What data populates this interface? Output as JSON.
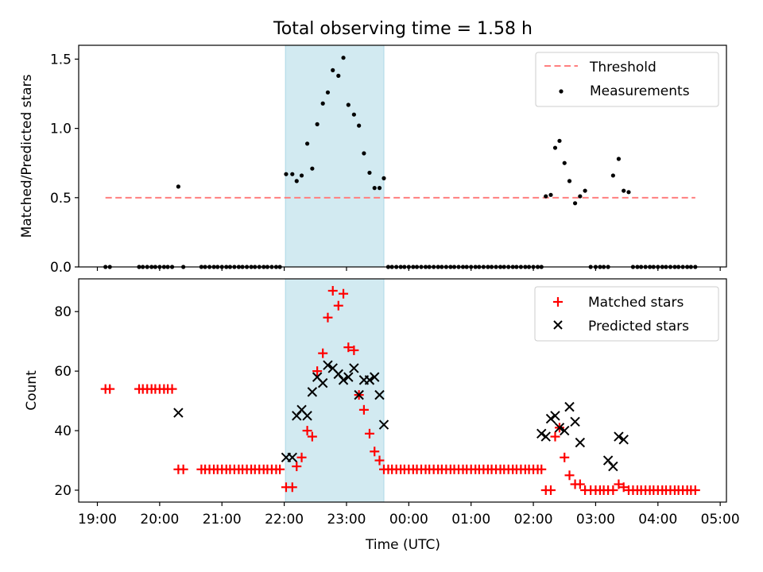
{
  "figure_title": "Total observing time = 1.58 h",
  "xlabel": "Time (UTC)",
  "x_tick_labels": [
    "19:00",
    "20:00",
    "21:00",
    "22:00",
    "23:00",
    "00:00",
    "01:00",
    "02:00",
    "03:00",
    "04:00",
    "05:00"
  ],
  "chart_data": [
    {
      "type": "scatter",
      "ylabel": "Matched/Predicted stars",
      "xlim_hours": [
        18.7,
        29.1
      ],
      "ylim": [
        0,
        1.6
      ],
      "y_tick_labels": [
        "0.0",
        "0.5",
        "1.0",
        "1.5"
      ],
      "shaded_region_hours": [
        22.02,
        23.6
      ],
      "shaded_color": "#add8e6",
      "threshold": {
        "name": "Threshold",
        "value": 0.5,
        "x_range_hours": [
          19.13,
          28.6
        ],
        "color": "#ff7f7f",
        "style": "dashed"
      },
      "legend": {
        "placement": "upper right",
        "entries": [
          "Threshold",
          "Measurements"
        ]
      },
      "series": [
        {
          "name": "Measurements",
          "marker": "dot",
          "color": "#000000",
          "x_hours": [
            19.13,
            19.2,
            19.67,
            19.73,
            19.8,
            19.87,
            19.93,
            20.0,
            20.07,
            20.13,
            20.2,
            20.3,
            20.38,
            20.67,
            20.73,
            20.8,
            20.87,
            20.93,
            21.0,
            21.07,
            21.13,
            21.2,
            21.27,
            21.33,
            21.4,
            21.47,
            21.53,
            21.6,
            21.67,
            21.73,
            21.8,
            21.87,
            21.93,
            22.03,
            22.13,
            22.2,
            22.28,
            22.37,
            22.45,
            22.53,
            22.62,
            22.7,
            22.78,
            22.87,
            22.95,
            23.03,
            23.12,
            23.2,
            23.28,
            23.37,
            23.45,
            23.53,
            23.6,
            23.67,
            23.73,
            23.8,
            23.87,
            23.93,
            24.0,
            24.07,
            24.13,
            24.2,
            24.27,
            24.33,
            24.4,
            24.47,
            24.53,
            24.6,
            24.67,
            24.73,
            24.8,
            24.87,
            24.93,
            25.0,
            25.07,
            25.13,
            25.2,
            25.27,
            25.33,
            25.4,
            25.47,
            25.53,
            25.6,
            25.67,
            25.73,
            25.8,
            25.87,
            25.93,
            26.0,
            26.07,
            26.13,
            26.2,
            26.28,
            26.35,
            26.42,
            26.5,
            26.58,
            26.67,
            26.75,
            26.83,
            26.92,
            27.0,
            27.07,
            27.13,
            27.2,
            27.28,
            27.37,
            27.45,
            27.53,
            27.6,
            27.67,
            27.73,
            27.8,
            27.87,
            27.93,
            28.0,
            28.07,
            28.13,
            28.2,
            28.27,
            28.33,
            28.4,
            28.47,
            28.53,
            28.6
          ],
          "y": [
            0,
            0,
            0,
            0,
            0,
            0,
            0,
            0,
            0,
            0,
            0,
            0.58,
            0,
            0,
            0,
            0,
            0,
            0,
            0,
            0,
            0,
            0,
            0,
            0,
            0,
            0,
            0,
            0,
            0,
            0,
            0,
            0,
            0,
            0.67,
            0.67,
            0.62,
            0.66,
            0.89,
            0.71,
            1.03,
            1.18,
            1.26,
            1.42,
            1.38,
            1.51,
            1.17,
            1.1,
            1.02,
            0.82,
            0.68,
            0.57,
            0.57,
            0.64,
            0,
            0,
            0,
            0,
            0,
            0,
            0,
            0,
            0,
            0,
            0,
            0,
            0,
            0,
            0,
            0,
            0,
            0,
            0,
            0,
            0,
            0,
            0,
            0,
            0,
            0,
            0,
            0,
            0,
            0,
            0,
            0,
            0,
            0,
            0,
            0,
            0,
            0,
            0.51,
            0.52,
            0.86,
            0.91,
            0.75,
            0.62,
            0.46,
            0.51,
            0.55,
            0,
            0,
            0,
            0,
            0,
            0.66,
            0.78,
            0.55,
            0.54,
            0,
            0,
            0,
            0,
            0,
            0,
            0,
            0,
            0,
            0,
            0,
            0,
            0,
            0,
            0,
            0
          ]
        }
      ]
    },
    {
      "type": "scatter",
      "ylabel": "Count",
      "xlim_hours": [
        18.7,
        29.1
      ],
      "ylim": [
        16,
        91
      ],
      "y_tick_labels": [
        "20",
        "40",
        "60",
        "80"
      ],
      "y_tick_values": [
        20,
        40,
        60,
        80
      ],
      "shaded_region_hours": [
        22.02,
        23.6
      ],
      "shaded_color": "#add8e6",
      "legend": {
        "placement": "upper right",
        "entries": [
          "Matched stars",
          "Predicted stars"
        ]
      },
      "series": [
        {
          "name": "Matched stars",
          "marker": "plus",
          "color": "#ff0000",
          "x_hours": [
            19.13,
            19.2,
            19.67,
            19.73,
            19.8,
            19.87,
            19.93,
            20.0,
            20.07,
            20.13,
            20.2,
            20.3,
            20.38,
            20.67,
            20.73,
            20.8,
            20.87,
            20.93,
            21.0,
            21.07,
            21.13,
            21.2,
            21.27,
            21.33,
            21.4,
            21.47,
            21.53,
            21.6,
            21.67,
            21.73,
            21.8,
            21.87,
            21.93,
            22.03,
            22.13,
            22.2,
            22.28,
            22.37,
            22.45,
            22.53,
            22.62,
            22.7,
            22.78,
            22.87,
            22.95,
            23.03,
            23.12,
            23.2,
            23.28,
            23.37,
            23.45,
            23.53,
            23.6,
            23.67,
            23.73,
            23.8,
            23.87,
            23.93,
            24.0,
            24.07,
            24.13,
            24.2,
            24.27,
            24.33,
            24.4,
            24.47,
            24.53,
            24.6,
            24.67,
            24.73,
            24.8,
            24.87,
            24.93,
            25.0,
            25.07,
            25.13,
            25.2,
            25.27,
            25.33,
            25.4,
            25.47,
            25.53,
            25.6,
            25.67,
            25.73,
            25.8,
            25.87,
            25.93,
            26.0,
            26.07,
            26.13,
            26.2,
            26.28,
            26.35,
            26.42,
            26.5,
            26.58,
            26.67,
            26.75,
            26.83,
            26.92,
            27.0,
            27.07,
            27.13,
            27.2,
            27.28,
            27.37,
            27.45,
            27.53,
            27.6,
            27.67,
            27.73,
            27.8,
            27.87,
            27.93,
            28.0,
            28.07,
            28.13,
            28.2,
            28.27,
            28.33,
            28.4,
            28.47,
            28.53,
            28.6
          ],
          "y": [
            54,
            54,
            54,
            54,
            54,
            54,
            54,
            54,
            54,
            54,
            54,
            27,
            27,
            27,
            27,
            27,
            27,
            27,
            27,
            27,
            27,
            27,
            27,
            27,
            27,
            27,
            27,
            27,
            27,
            27,
            27,
            27,
            27,
            21,
            21,
            28,
            31,
            40,
            38,
            60,
            66,
            78,
            87,
            82,
            86,
            68,
            67,
            52,
            47,
            39,
            33,
            30,
            27,
            27,
            27,
            27,
            27,
            27,
            27,
            27,
            27,
            27,
            27,
            27,
            27,
            27,
            27,
            27,
            27,
            27,
            27,
            27,
            27,
            27,
            27,
            27,
            27,
            27,
            27,
            27,
            27,
            27,
            27,
            27,
            27,
            27,
            27,
            27,
            27,
            27,
            27,
            20,
            20,
            38,
            41,
            31,
            25,
            22,
            22,
            20,
            20,
            20,
            20,
            20,
            20,
            20,
            22,
            21,
            20,
            20,
            20,
            20,
            20,
            20,
            20,
            20,
            20,
            20,
            20,
            20,
            20,
            20,
            20,
            20,
            20
          ]
        },
        {
          "name": "Predicted stars",
          "marker": "x",
          "color": "#000000",
          "x_hours": [
            20.3,
            22.03,
            22.13,
            22.2,
            22.28,
            22.37,
            22.45,
            22.53,
            22.62,
            22.7,
            22.78,
            22.87,
            22.95,
            23.03,
            23.12,
            23.2,
            23.28,
            23.37,
            23.45,
            23.53,
            23.6,
            26.13,
            26.2,
            26.28,
            26.35,
            26.42,
            26.5,
            26.58,
            26.67,
            26.75,
            27.2,
            27.28,
            27.37,
            27.45
          ],
          "y": [
            46,
            31,
            31,
            45,
            47,
            45,
            53,
            58,
            56,
            62,
            61,
            59,
            57,
            58,
            61,
            52,
            57,
            57,
            58,
            52,
            42,
            39,
            38,
            44,
            45,
            41,
            40,
            48,
            43,
            36,
            30,
            28,
            38,
            37
          ]
        }
      ]
    }
  ]
}
